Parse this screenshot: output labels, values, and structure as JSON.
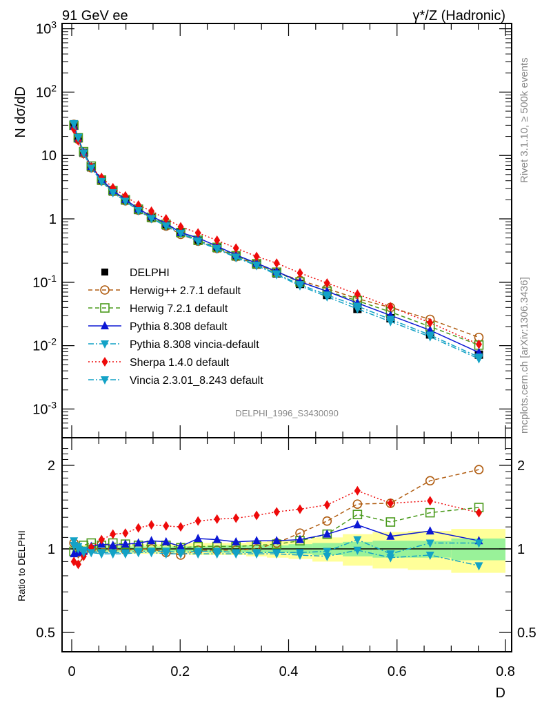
{
  "header": {
    "left_title": "91 GeV ee",
    "right_title": "γ*/Z (Hadronic)"
  },
  "side_labels": {
    "rivet": "Rivet 3.1.10, ≥ 500k events",
    "mcplots": "mcplots.cern.ch [arXiv:1306.3436]"
  },
  "analysis_id": "DELPHI_1996_S3430090",
  "chart_data": [
    {
      "type": "line",
      "panel": "main",
      "title": "91 GeV ee",
      "xlabel": "D",
      "ylabel": "N dσ/dD",
      "yscale": "log",
      "xlim": [
        -0.02,
        0.8
      ],
      "ylim": [
        0.0005,
        1000
      ],
      "ytick_labels": [
        "10^3",
        "10^2",
        "10",
        "1",
        "10^-1",
        "10^-2",
        "10^-3"
      ],
      "ytick_values": [
        1000,
        100,
        10,
        1,
        0.1,
        0.01,
        0.001
      ],
      "legend_position": "center-left",
      "x": [
        0.004,
        0.012,
        0.022,
        0.036,
        0.055,
        0.076,
        0.099,
        0.123,
        0.147,
        0.174,
        0.201,
        0.233,
        0.268,
        0.303,
        0.341,
        0.378,
        0.421,
        0.471,
        0.527,
        0.588,
        0.661,
        0.751
      ],
      "series": [
        {
          "name": "DELPHI",
          "style": "data",
          "color": "#000000",
          "marker": "square-filled",
          "values": [
            30,
            19,
            11,
            6.5,
            4.0,
            2.7,
            1.95,
            1.38,
            1.03,
            0.79,
            0.6,
            0.45,
            0.345,
            0.255,
            0.19,
            0.138,
            0.094,
            0.063,
            0.038,
            0.027,
            0.015,
            0.0072
          ]
        },
        {
          "name": "Herwig++ 2.7.1 default",
          "color": "#b05c10",
          "marker": "circle-open",
          "dash": "6,4",
          "values": [
            31,
            18,
            10.8,
            6.4,
            4.0,
            2.7,
            1.93,
            1.37,
            1.03,
            0.77,
            0.57,
            0.445,
            0.342,
            0.253,
            0.19,
            0.145,
            0.107,
            0.079,
            0.055,
            0.04,
            0.026,
            0.0135
          ]
        },
        {
          "name": "Herwig 7.2.1 default",
          "color": "#4a9a1c",
          "marker": "square-open",
          "dash": "6,4",
          "values": [
            30,
            19,
            11.5,
            6.8,
            4.1,
            2.8,
            2.0,
            1.42,
            1.06,
            0.82,
            0.61,
            0.46,
            0.355,
            0.262,
            0.196,
            0.144,
            0.101,
            0.072,
            0.051,
            0.034,
            0.02,
            0.0102
          ]
        },
        {
          "name": "Pythia 8.308 default",
          "color": "#0b17d4",
          "marker": "triangle-up-filled",
          "dash": "",
          "values": [
            29,
            18.5,
            11.2,
            6.7,
            4.2,
            2.8,
            2.03,
            1.44,
            1.1,
            0.85,
            0.61,
            0.5,
            0.37,
            0.27,
            0.2,
            0.148,
            0.102,
            0.072,
            0.047,
            0.03,
            0.0175,
            0.0078
          ]
        },
        {
          "name": "Pythia 8.308 vincia-default",
          "color": "#13a2c6",
          "marker": "triangle-down-filled",
          "dash": "8,3,2,3",
          "values": [
            32,
            19.5,
            11,
            6.4,
            3.9,
            2.6,
            1.9,
            1.35,
            1.02,
            0.78,
            0.6,
            0.45,
            0.34,
            0.25,
            0.187,
            0.136,
            0.092,
            0.063,
            0.042,
            0.026,
            0.0147,
            0.0066
          ]
        },
        {
          "name": "Sherpa 1.4.0 default",
          "color": "#ee0a0a",
          "marker": "diamond-filled",
          "dash": "2,3",
          "values": [
            26,
            17,
            10.5,
            6.6,
            4.5,
            3.1,
            2.3,
            1.65,
            1.32,
            1.0,
            0.75,
            0.6,
            0.46,
            0.345,
            0.255,
            0.2,
            0.14,
            0.097,
            0.065,
            0.041,
            0.023,
            0.0105
          ]
        },
        {
          "name": "Vincia 2.3.01_8.243 default",
          "color": "#13a2c6",
          "marker": "triangle-down-filled",
          "dash": "8,3,2,3",
          "values": [
            31,
            19,
            10.8,
            6.3,
            3.9,
            2.6,
            1.9,
            1.35,
            1.01,
            0.77,
            0.59,
            0.44,
            0.335,
            0.245,
            0.183,
            0.132,
            0.088,
            0.059,
            0.038,
            0.024,
            0.0138,
            0.0062
          ]
        }
      ]
    },
    {
      "type": "line",
      "panel": "ratio",
      "xlabel": "D",
      "ylabel": "Ratio to DELPHI",
      "yscale": "log",
      "xlim": [
        -0.02,
        0.8
      ],
      "ylim": [
        0.42,
        2.35
      ],
      "ytick_labels": [
        "2",
        "1",
        "0.5"
      ],
      "ytick_values": [
        2,
        1,
        0.5
      ],
      "xtick_labels": [
        "0",
        "0.2",
        "0.4",
        "0.6",
        "0.8"
      ],
      "xtick_values": [
        0,
        0.2,
        0.4,
        0.6,
        0.8
      ],
      "x": [
        0.004,
        0.012,
        0.022,
        0.036,
        0.055,
        0.076,
        0.099,
        0.123,
        0.147,
        0.174,
        0.201,
        0.233,
        0.268,
        0.303,
        0.341,
        0.378,
        0.421,
        0.471,
        0.527,
        0.588,
        0.661,
        0.751
      ],
      "bands": {
        "bin_edges": [
          0,
          0.008,
          0.016,
          0.028,
          0.044,
          0.066,
          0.087,
          0.111,
          0.135,
          0.16,
          0.187,
          0.216,
          0.25,
          0.286,
          0.322,
          0.36,
          0.4,
          0.444,
          0.5,
          0.555,
          0.62,
          0.7,
          0.8
        ],
        "stat_rel": [
          0.03,
          0.02,
          0.02,
          0.02,
          0.02,
          0.02,
          0.02,
          0.02,
          0.02,
          0.02,
          0.02,
          0.02,
          0.03,
          0.03,
          0.03,
          0.03,
          0.04,
          0.05,
          0.06,
          0.07,
          0.07,
          0.09
        ],
        "total_rel": [
          0.04,
          0.03,
          0.03,
          0.03,
          0.03,
          0.03,
          0.03,
          0.04,
          0.04,
          0.04,
          0.04,
          0.05,
          0.05,
          0.05,
          0.06,
          0.07,
          0.08,
          0.1,
          0.13,
          0.15,
          0.16,
          0.18
        ],
        "stat_color": "#99f299",
        "total_color": "#ffff99"
      },
      "series": [
        {
          "name": "Herwig++ 2.7.1 default",
          "color": "#b05c10",
          "marker": "circle-open",
          "dash": "6,4",
          "values": [
            1.05,
            0.93,
            0.98,
            1.0,
            1.0,
            1.0,
            0.99,
            1.0,
            1.0,
            0.97,
            0.95,
            0.99,
            0.99,
            0.99,
            1.0,
            1.05,
            1.14,
            1.26,
            1.45,
            1.46,
            1.76,
            1.93
          ]
        },
        {
          "name": "Herwig 7.2.1 default",
          "color": "#4a9a1c",
          "marker": "square-open",
          "dash": "6,4",
          "values": [
            0.98,
            0.98,
            1.03,
            1.05,
            1.03,
            1.05,
            1.04,
            1.03,
            1.03,
            1.03,
            1.01,
            1.02,
            1.02,
            1.02,
            1.03,
            1.04,
            1.07,
            1.13,
            1.33,
            1.25,
            1.35,
            1.41
          ]
        },
        {
          "name": "Pythia 8.308 default",
          "color": "#0b17d4",
          "marker": "triangle-up-filled",
          "dash": "",
          "values": [
            0.96,
            0.97,
            0.98,
            1.02,
            1.04,
            1.03,
            1.04,
            1.05,
            1.07,
            1.06,
            1.02,
            1.09,
            1.08,
            1.06,
            1.07,
            1.07,
            1.08,
            1.13,
            1.22,
            1.11,
            1.16,
            1.07
          ]
        },
        {
          "name": "Pythia 8.308 vincia-default",
          "color": "#13a2c6",
          "marker": "triangle-down-filled",
          "dash": "8,3,2,3",
          "values": [
            1.07,
            1.02,
            0.99,
            0.98,
            0.97,
            0.97,
            0.97,
            0.98,
            0.98,
            0.98,
            0.97,
            0.98,
            0.98,
            0.97,
            0.97,
            0.97,
            0.97,
            0.98,
            1.08,
            0.96,
            1.05,
            1.05
          ]
        },
        {
          "name": "Sherpa 1.4.0 default",
          "color": "#ee0a0a",
          "marker": "diamond-filled",
          "dash": "2,3",
          "values": [
            0.9,
            0.88,
            0.94,
            1.01,
            1.08,
            1.13,
            1.14,
            1.19,
            1.22,
            1.21,
            1.2,
            1.26,
            1.28,
            1.29,
            1.32,
            1.36,
            1.39,
            1.44,
            1.62,
            1.46,
            1.49,
            1.35
          ]
        },
        {
          "name": "Vincia 2.3.01_8.243 default",
          "color": "#13a2c6",
          "marker": "triangle-down-filled",
          "dash": "8,3,2,3",
          "values": [
            1.03,
            1.0,
            0.97,
            0.97,
            0.96,
            0.96,
            0.96,
            0.97,
            0.97,
            0.96,
            0.96,
            0.96,
            0.96,
            0.96,
            0.96,
            0.96,
            0.95,
            0.94,
            0.99,
            0.93,
            0.95,
            0.87
          ]
        }
      ]
    }
  ]
}
